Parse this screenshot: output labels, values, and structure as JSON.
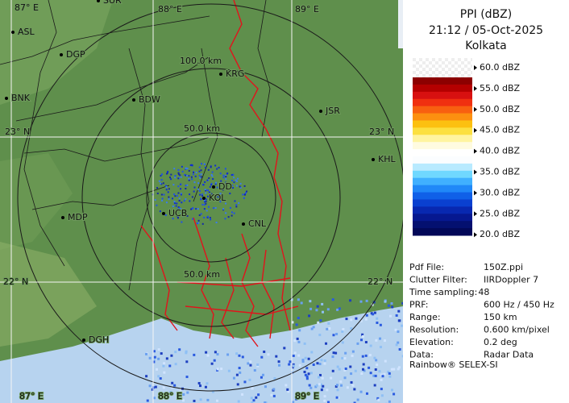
{
  "header": {
    "title": "PPI (dBZ)",
    "time": "21:12 / 05-Oct-2025",
    "site": "Kolkata"
  },
  "map": {
    "grid_labels": [
      "87° E",
      "88° E",
      "89° E",
      "23° N",
      "23° N",
      "22° N",
      "22° N",
      "87° E",
      "88° E",
      "89° E"
    ],
    "ring_labels": [
      "100.0 km",
      "50.0 km",
      "50.0 km"
    ],
    "places": [
      "SUR",
      "ASL",
      "DGP",
      "KRG",
      "BDW",
      "BNK",
      "JSR",
      "KHL",
      "MDP",
      "UCB",
      "KOL",
      "DD",
      "CNL",
      "DGH"
    ]
  },
  "legend": [
    "60.0 dBZ",
    "55.0 dBZ",
    "50.0 dBZ",
    "45.0 dBZ",
    "40.0 dBZ",
    "35.0 dBZ",
    "30.0 dBZ",
    "25.0 dBZ",
    "20.0 dBZ"
  ],
  "info": [
    [
      "Pdf File:",
      "150Z.ppi"
    ],
    [
      "Clutter Filter:",
      "IIRDoppler 7"
    ],
    [
      "Time sampling:",
      "48"
    ],
    [
      "PRF:",
      "600 Hz / 450 Hz"
    ],
    [
      "Range:",
      "150 km"
    ],
    [
      "Resolution:",
      "0.600 km/pixel"
    ],
    [
      "Elevation:",
      "0.2 deg"
    ],
    [
      "Data:",
      "Radar Data"
    ]
  ],
  "credit": "Rainbow® SELEX-SI"
}
